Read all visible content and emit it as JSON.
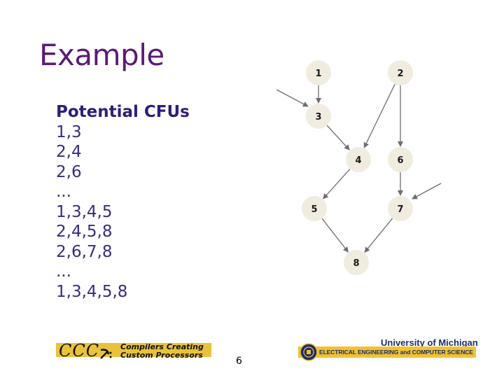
{
  "slide": {
    "title": "Example",
    "page_number": "6"
  },
  "cfu_list": {
    "heading": "Potential CFUs",
    "items": [
      "1,3",
      "2,4",
      "2,6",
      "...",
      "1,3,4,5",
      "2,4,5,8",
      "2,6,7,8",
      "...",
      "1,3,4,5,8"
    ]
  },
  "graph": {
    "nodes": [
      {
        "id": "1",
        "label": "1"
      },
      {
        "id": "2",
        "label": "2"
      },
      {
        "id": "3",
        "label": "3"
      },
      {
        "id": "4",
        "label": "4"
      },
      {
        "id": "5",
        "label": "5"
      },
      {
        "id": "6",
        "label": "6"
      },
      {
        "id": "7",
        "label": "7"
      },
      {
        "id": "8",
        "label": "8"
      }
    ],
    "edges": [
      {
        "from": "1",
        "to": "3"
      },
      {
        "from": "2",
        "to": "4"
      },
      {
        "from": "2",
        "to": "6"
      },
      {
        "from": "3",
        "to": "4"
      },
      {
        "from": "4",
        "to": "5"
      },
      {
        "from": "6",
        "to": "7"
      },
      {
        "from": "5",
        "to": "8"
      },
      {
        "from": "7",
        "to": "8"
      }
    ],
    "node_color": "#f0ece0",
    "edge_color": "#6e6e6e"
  },
  "footer": {
    "ccc_logo": {
      "mark": "CCC",
      "tagline_1": "Compilers Creating",
      "tagline_2": "Custom Processors",
      "band_color": "#e8c23a"
    },
    "um_logo": {
      "name": "University of Michigan",
      "department": "ELECTRICAL ENGINEERING and COMPUTER SCIENCE",
      "band_color": "#f1c232",
      "text_color": "#1d2d6b"
    }
  }
}
